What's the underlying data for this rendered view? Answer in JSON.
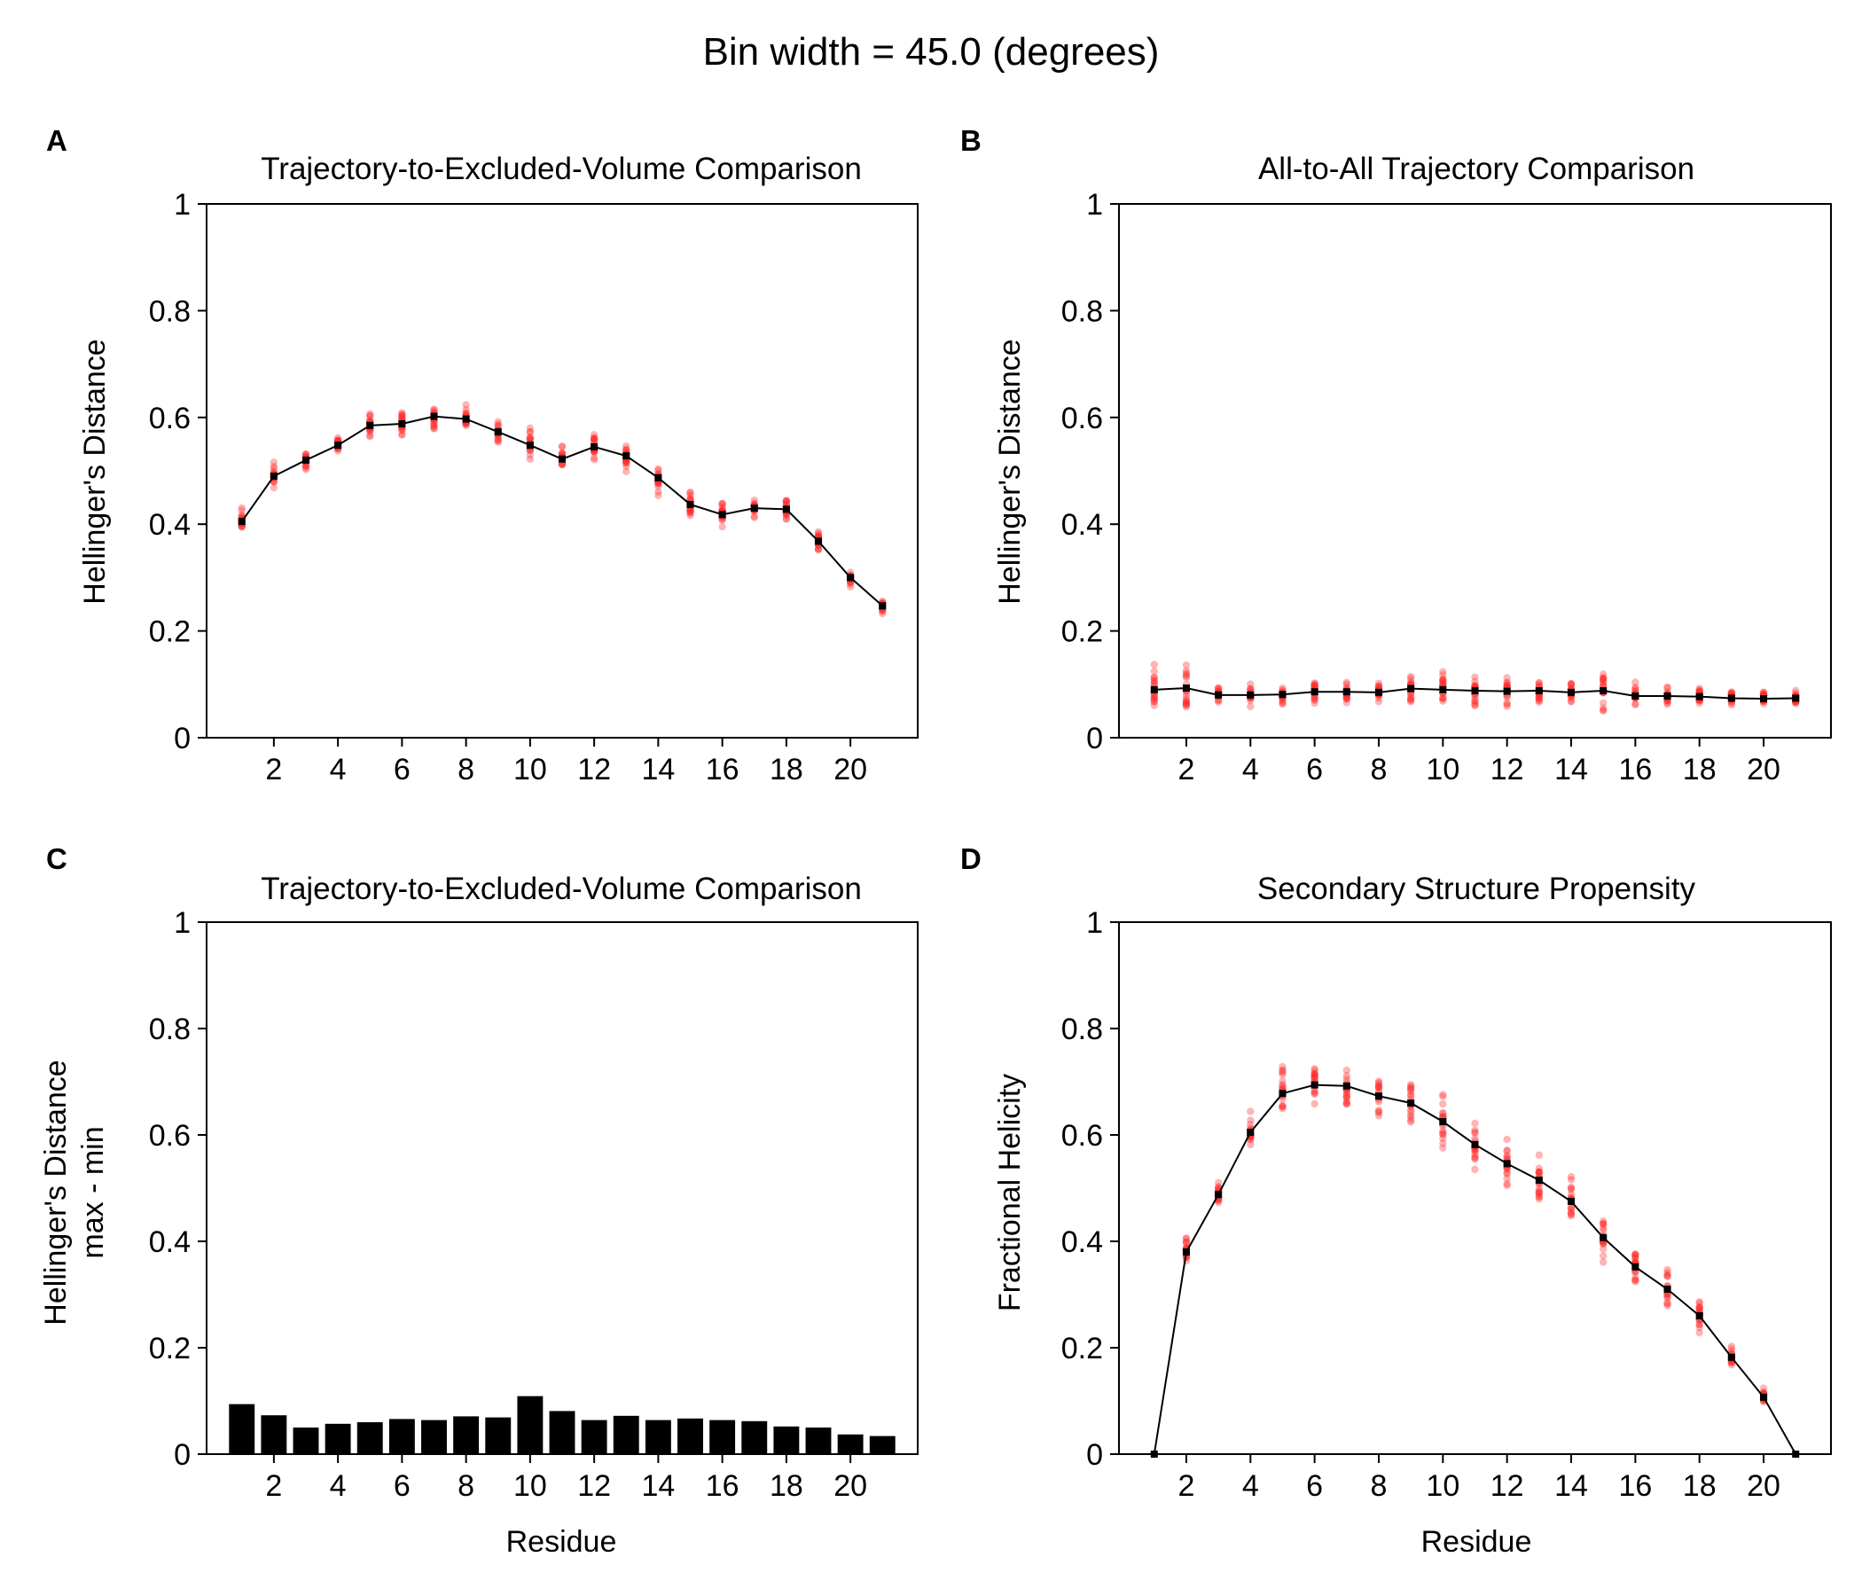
{
  "figure_title": "Bin width = 45.0 (degrees)",
  "panels": {
    "A": {
      "letter": "A",
      "title": "Trajectory-to-Excluded-Volume Comparison",
      "ylabel": [
        "Hellinger's Distance"
      ],
      "xlabel": ""
    },
    "B": {
      "letter": "B",
      "title": "All-to-All Trajectory Comparison",
      "ylabel": [
        "Hellinger's Distance"
      ],
      "xlabel": ""
    },
    "C": {
      "letter": "C",
      "title": "Trajectory-to-Excluded-Volume Comparison",
      "ylabel": [
        "Hellinger's Distance",
        "max - min"
      ],
      "xlabel": "Residue"
    },
    "D": {
      "letter": "D",
      "title": "Secondary Structure Propensity",
      "ylabel": [
        "Fractional Helicity"
      ],
      "xlabel": "Residue"
    }
  },
  "colors": {
    "scatter": "#ff2a2a",
    "line": "#000000",
    "bar": "#000000"
  },
  "chart_data": [
    {
      "panel": "A",
      "type": "line",
      "title": "Trajectory-to-Excluded-Volume Comparison",
      "xlabel": "",
      "ylabel": "Hellinger's Distance",
      "x": [
        1,
        2,
        3,
        4,
        5,
        6,
        7,
        8,
        9,
        10,
        11,
        12,
        13,
        14,
        15,
        16,
        17,
        18,
        19,
        20,
        21
      ],
      "mean": [
        0.405,
        0.49,
        0.52,
        0.548,
        0.585,
        0.588,
        0.602,
        0.597,
        0.573,
        0.548,
        0.522,
        0.545,
        0.528,
        0.487,
        0.437,
        0.418,
        0.43,
        0.428,
        0.368,
        0.3,
        0.247
      ],
      "scatter_spread": [
        0.045,
        0.035,
        0.03,
        0.028,
        0.03,
        0.03,
        0.03,
        0.03,
        0.03,
        0.04,
        0.035,
        0.03,
        0.035,
        0.035,
        0.03,
        0.03,
        0.03,
        0.03,
        0.03,
        0.02,
        0.018
      ],
      "ylim": [
        0,
        1
      ],
      "yticks": [
        0,
        0.2,
        0.4,
        0.6,
        0.8,
        1
      ],
      "ytick_labels": [
        "0",
        "0.2",
        "0.4",
        "0.6",
        "0.8",
        "1"
      ],
      "xticks": [
        2,
        4,
        6,
        8,
        10,
        12,
        14,
        16,
        18,
        20
      ],
      "xtick_labels": [
        "2",
        "4",
        "6",
        "8",
        "10",
        "12",
        "14",
        "16",
        "18",
        "20"
      ],
      "grid": false
    },
    {
      "panel": "B",
      "type": "line",
      "title": "All-to-All Trajectory Comparison",
      "xlabel": "",
      "ylabel": "Hellinger's Distance",
      "x": [
        1,
        2,
        3,
        4,
        5,
        6,
        7,
        8,
        9,
        10,
        11,
        12,
        13,
        14,
        15,
        16,
        17,
        18,
        19,
        20,
        21
      ],
      "mean": [
        0.09,
        0.093,
        0.08,
        0.08,
        0.081,
        0.086,
        0.086,
        0.085,
        0.092,
        0.09,
        0.088,
        0.087,
        0.088,
        0.085,
        0.088,
        0.078,
        0.078,
        0.077,
        0.074,
        0.073,
        0.074
      ],
      "scatter_spread": [
        0.06,
        0.09,
        0.022,
        0.025,
        0.025,
        0.03,
        0.03,
        0.028,
        0.035,
        0.045,
        0.045,
        0.035,
        0.035,
        0.03,
        0.045,
        0.03,
        0.03,
        0.025,
        0.02,
        0.018,
        0.02
      ],
      "ylim": [
        0,
        1
      ],
      "yticks": [
        0,
        0.2,
        0.4,
        0.6,
        0.8,
        1
      ],
      "ytick_labels": [
        "0",
        "0.2",
        "0.4",
        "0.6",
        "0.8",
        "1"
      ],
      "xticks": [
        2,
        4,
        6,
        8,
        10,
        12,
        14,
        16,
        18,
        20
      ],
      "xtick_labels": [
        "2",
        "4",
        "6",
        "8",
        "10",
        "12",
        "14",
        "16",
        "18",
        "20"
      ],
      "grid": false
    },
    {
      "panel": "C",
      "type": "bar",
      "title": "Trajectory-to-Excluded-Volume Comparison",
      "xlabel": "Residue",
      "ylabel": "Hellinger's Distance max - min",
      "categories": [
        1,
        2,
        3,
        4,
        5,
        6,
        7,
        8,
        9,
        10,
        11,
        12,
        13,
        14,
        15,
        16,
        17,
        18,
        19,
        20,
        21
      ],
      "values": [
        0.094,
        0.073,
        0.05,
        0.057,
        0.06,
        0.066,
        0.064,
        0.071,
        0.069,
        0.109,
        0.081,
        0.064,
        0.072,
        0.064,
        0.067,
        0.064,
        0.062,
        0.052,
        0.05,
        0.037,
        0.034
      ],
      "ylim": [
        0,
        1
      ],
      "yticks": [
        0,
        0.2,
        0.4,
        0.6,
        0.8,
        1
      ],
      "ytick_labels": [
        "0",
        "0.2",
        "0.4",
        "0.6",
        "0.8",
        "1"
      ],
      "xticks": [
        2,
        4,
        6,
        8,
        10,
        12,
        14,
        16,
        18,
        20
      ],
      "xtick_labels": [
        "2",
        "4",
        "6",
        "8",
        "10",
        "12",
        "14",
        "16",
        "18",
        "20"
      ],
      "grid": false
    },
    {
      "panel": "D",
      "type": "line",
      "title": "Secondary Structure Propensity",
      "xlabel": "Residue",
      "ylabel": "Fractional Helicity",
      "x": [
        1,
        2,
        3,
        4,
        5,
        6,
        7,
        8,
        9,
        10,
        11,
        12,
        13,
        14,
        15,
        16,
        17,
        18,
        19,
        20,
        21
      ],
      "mean": [
        0.0,
        0.38,
        0.488,
        0.605,
        0.678,
        0.694,
        0.692,
        0.673,
        0.66,
        0.625,
        0.582,
        0.546,
        0.515,
        0.475,
        0.407,
        0.352,
        0.31,
        0.26,
        0.182,
        0.107,
        0.0
      ],
      "scatter_spread": [
        0.0,
        0.035,
        0.03,
        0.055,
        0.06,
        0.065,
        0.065,
        0.065,
        0.06,
        0.075,
        0.075,
        0.075,
        0.07,
        0.065,
        0.055,
        0.05,
        0.05,
        0.04,
        0.03,
        0.02,
        0.0
      ],
      "ylim": [
        0,
        1
      ],
      "yticks": [
        0,
        0.2,
        0.4,
        0.6,
        0.8,
        1
      ],
      "ytick_labels": [
        "0",
        "0.2",
        "0.4",
        "0.6",
        "0.8",
        "1"
      ],
      "xticks": [
        2,
        4,
        6,
        8,
        10,
        12,
        14,
        16,
        18,
        20
      ],
      "xtick_labels": [
        "2",
        "4",
        "6",
        "8",
        "10",
        "12",
        "14",
        "16",
        "18",
        "20"
      ],
      "grid": false
    }
  ]
}
